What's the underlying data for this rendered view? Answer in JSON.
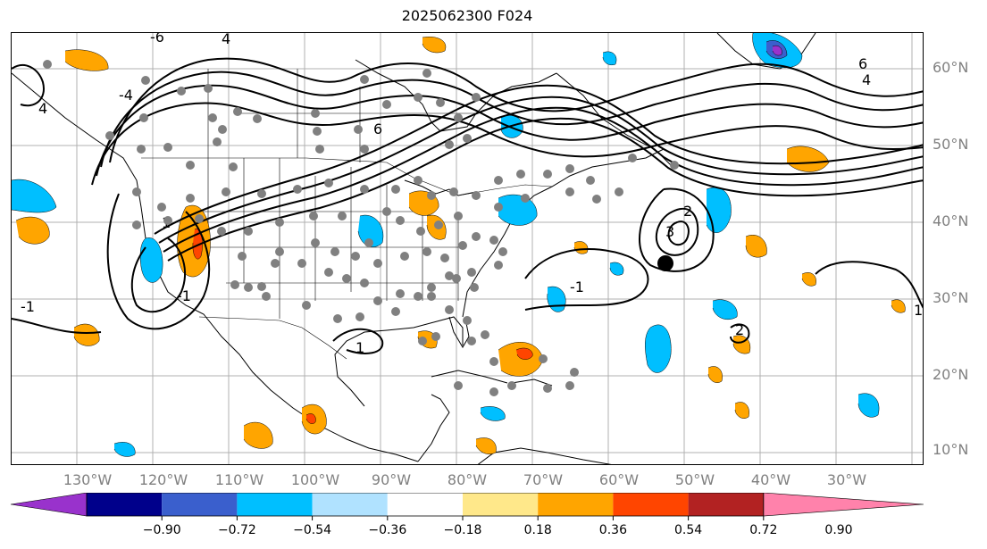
{
  "title": "2025062300 F024",
  "lat_labels": [
    "60°N",
    "50°N",
    "40°N",
    "30°N",
    "20°N",
    "10°N"
  ],
  "lon_labels": [
    "130°W",
    "120°W",
    "110°W",
    "100°W",
    "90°W",
    "80°W",
    "70°W",
    "60°W",
    "50°W",
    "40°W",
    "30°W"
  ],
  "contour_labels": [
    "-6",
    "4",
    "-4",
    "4",
    "6",
    "2",
    "3",
    "1",
    "-1",
    "1",
    "-1",
    "6",
    "4",
    "-1",
    "2",
    "1"
  ],
  "colorbar": {
    "ticks": [
      "−0.90",
      "−0.72",
      "−0.54",
      "−0.36",
      "−0.18",
      "0.18",
      "0.36",
      "0.54",
      "0.72",
      "0.90"
    ],
    "colors": [
      "#9932cc",
      "#00008b",
      "#3a5fcd",
      "#00bfff",
      "#b0e2ff",
      "#ffffff",
      "#ffe88a",
      "#ffa500",
      "#ff4500",
      "#b22222",
      "#ff82ab"
    ]
  },
  "colors": {
    "positive_moderate": "#ffa500",
    "positive_strong": "#ff4500",
    "negative_moderate": "#00bfff",
    "negative_strong": "#3a5fcd",
    "negative_extreme": "#9932cc",
    "station_dot": "#808080",
    "marker": "#000000"
  }
}
